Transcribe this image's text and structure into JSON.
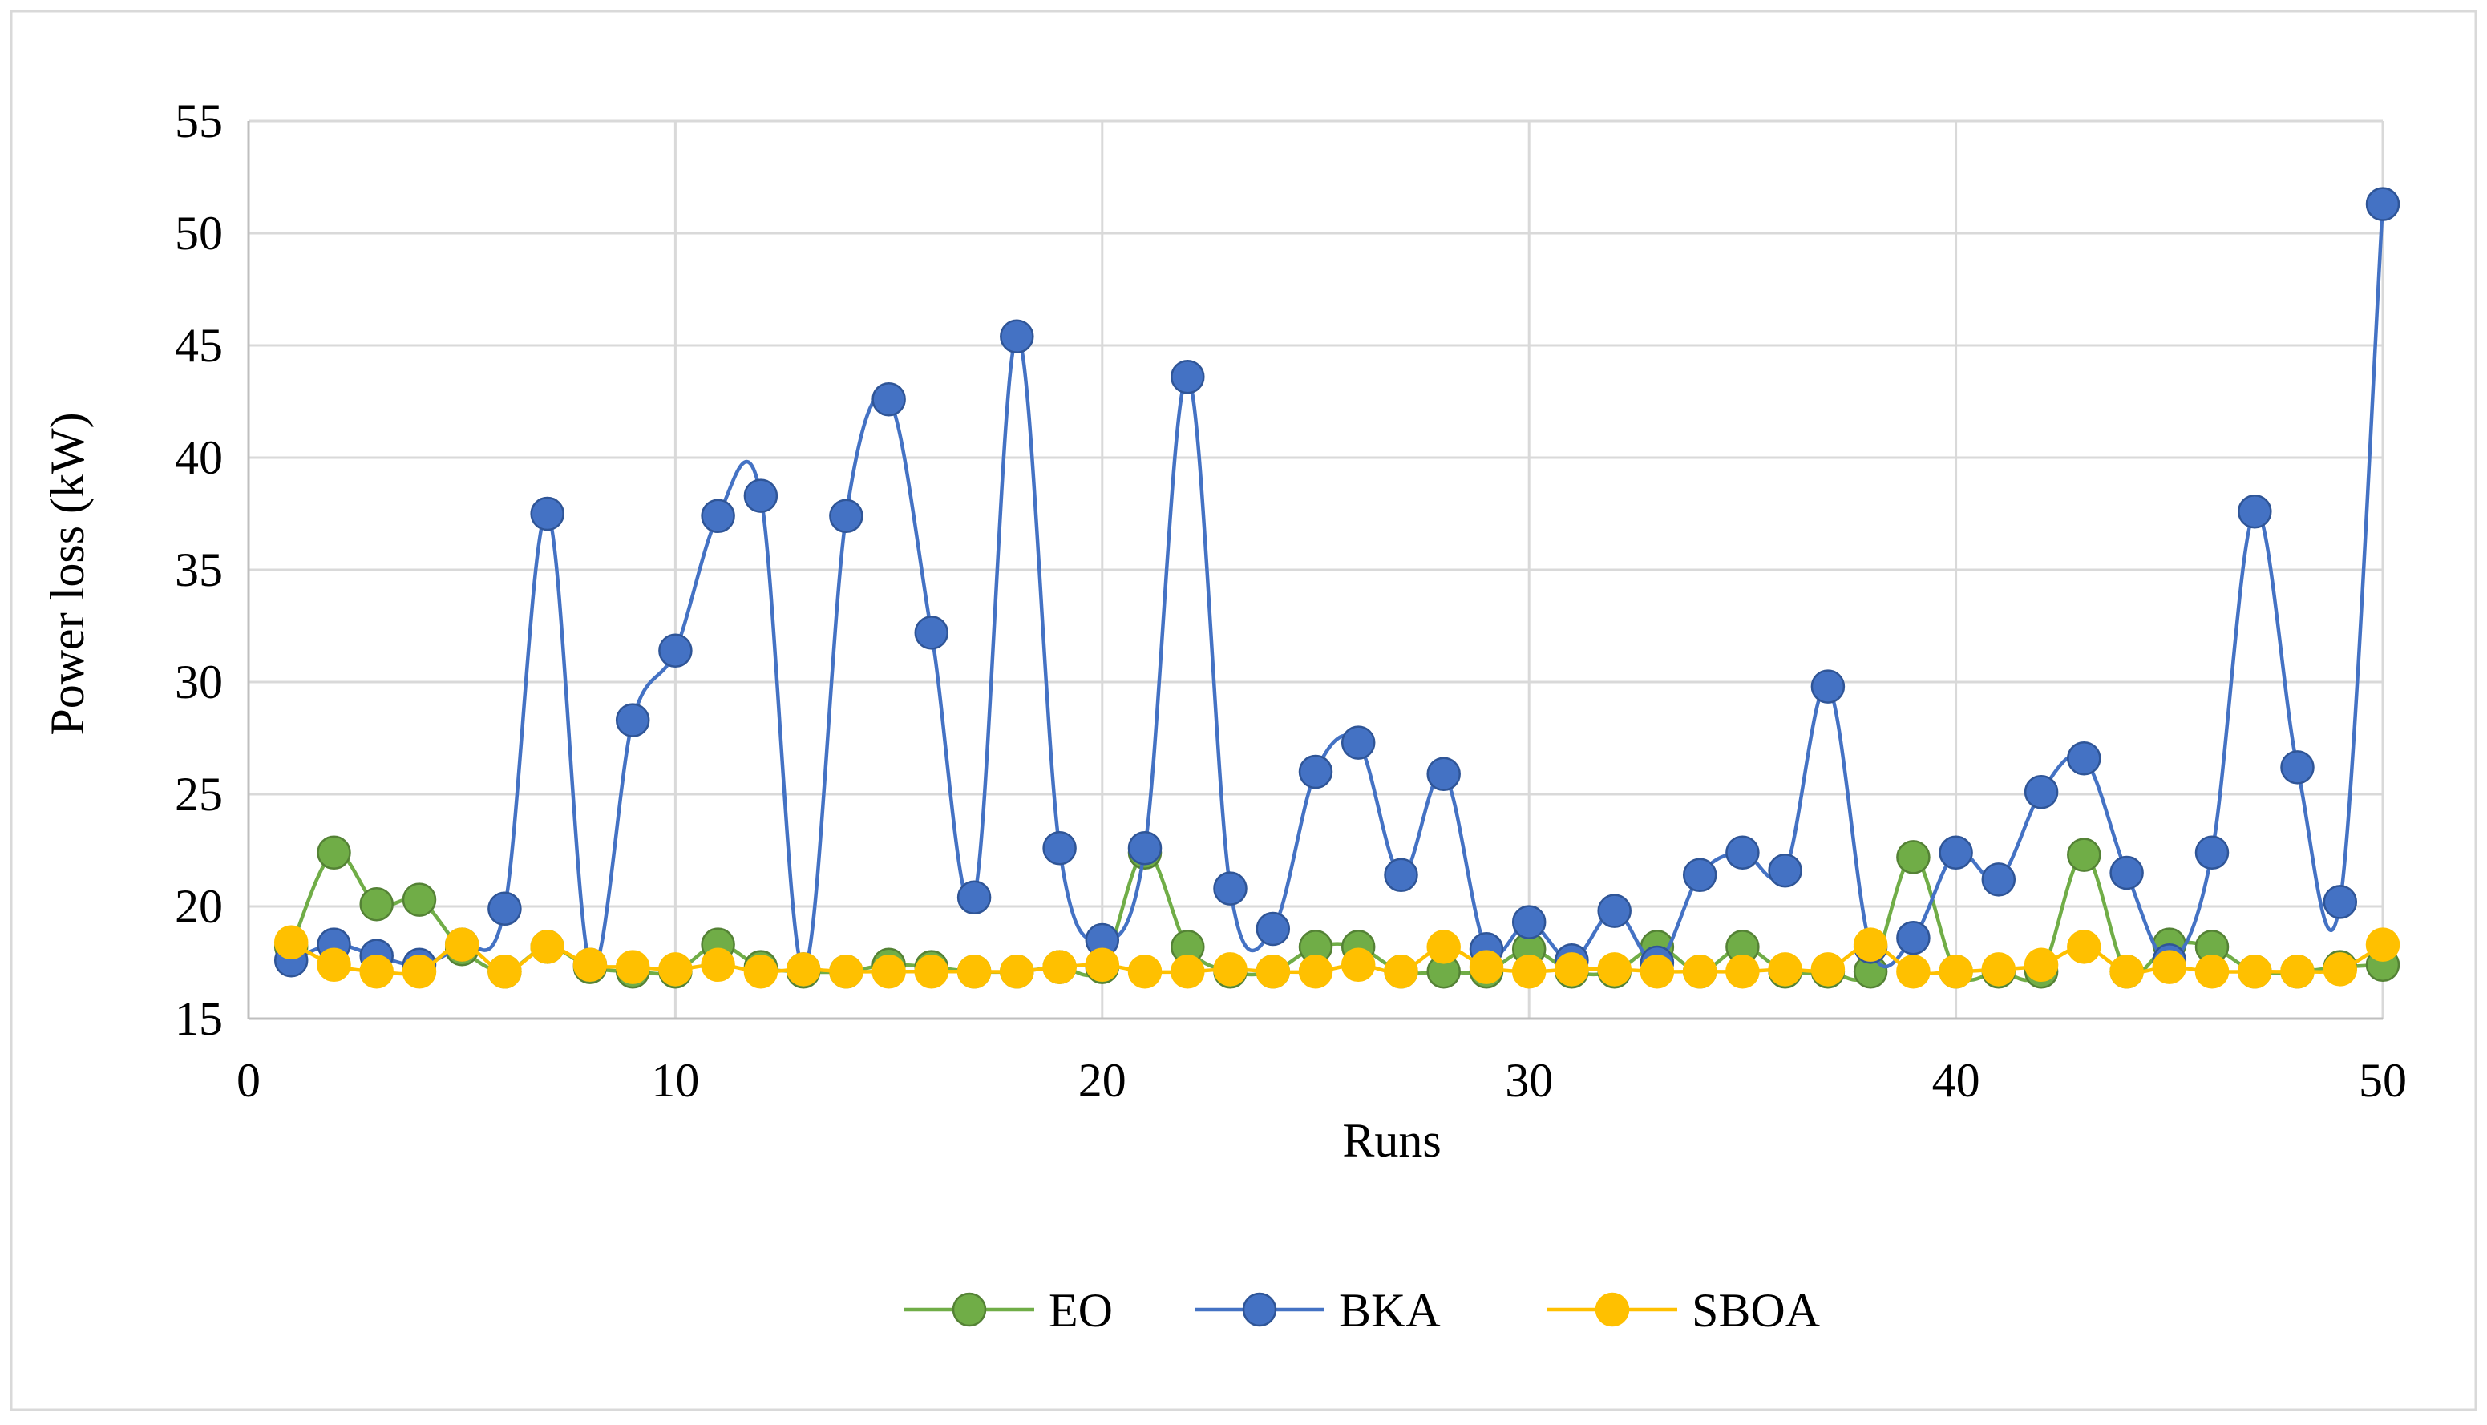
{
  "chart_data": {
    "type": "line",
    "title": "",
    "xlabel": "Runs",
    "ylabel": "Power loss (kW)",
    "xlim": [
      0,
      50
    ],
    "ylim": [
      15,
      55
    ],
    "xticks": [
      0,
      10,
      20,
      30,
      40,
      50
    ],
    "yticks": [
      15,
      20,
      25,
      30,
      35,
      40,
      45,
      50,
      55
    ],
    "grid": true,
    "legend_position": "bottom",
    "x": [
      1,
      2,
      3,
      4,
      5,
      6,
      7,
      8,
      9,
      10,
      11,
      12,
      13,
      14,
      15,
      16,
      17,
      18,
      19,
      20,
      21,
      22,
      23,
      24,
      25,
      26,
      27,
      28,
      29,
      30,
      31,
      32,
      33,
      34,
      35,
      36,
      37,
      38,
      39,
      40,
      41,
      42,
      43,
      44,
      45,
      46,
      47,
      48,
      49,
      50
    ],
    "series": [
      {
        "name": "EO",
        "color": "#70ad47",
        "stroke": "#548235",
        "values": [
          18.2,
          22.4,
          20.1,
          20.3,
          18.1,
          17.1,
          18.2,
          17.3,
          17.1,
          17.1,
          18.3,
          17.3,
          17.1,
          17.1,
          17.4,
          17.3,
          17.1,
          17.1,
          17.3,
          17.3,
          22.4,
          18.2,
          17.1,
          17.1,
          18.2,
          18.2,
          17.1,
          17.1,
          17.1,
          18.1,
          17.1,
          17.1,
          18.2,
          17.1,
          18.2,
          17.1,
          17.1,
          17.1,
          22.2,
          17.1,
          17.1,
          17.1,
          22.3,
          17.1,
          18.3,
          18.2,
          17.1,
          17.1,
          17.3,
          17.4
        ]
      },
      {
        "name": "BKA",
        "color": "#4472c4",
        "stroke": "#2f5597",
        "values": [
          17.6,
          18.3,
          17.8,
          17.4,
          18.3,
          19.9,
          37.5,
          17.4,
          28.3,
          31.4,
          37.4,
          38.3,
          17.2,
          37.4,
          42.6,
          32.2,
          20.4,
          45.4,
          22.6,
          18.5,
          22.6,
          43.6,
          20.8,
          19.0,
          26.0,
          27.3,
          21.4,
          25.9,
          18.1,
          19.3,
          17.6,
          19.8,
          17.5,
          21.4,
          22.4,
          21.6,
          29.8,
          18.2,
          18.6,
          22.4,
          21.2,
          25.1,
          26.6,
          21.5,
          17.6,
          22.4,
          37.6,
          26.2,
          20.2,
          51.3
        ]
      },
      {
        "name": "SBOA",
        "color": "#ffc000",
        "stroke": "#ffc000",
        "values": [
          18.4,
          17.4,
          17.1,
          17.1,
          18.3,
          17.1,
          18.2,
          17.4,
          17.3,
          17.2,
          17.4,
          17.1,
          17.2,
          17.1,
          17.1,
          17.1,
          17.1,
          17.1,
          17.3,
          17.4,
          17.1,
          17.1,
          17.2,
          17.1,
          17.1,
          17.4,
          17.1,
          18.2,
          17.3,
          17.1,
          17.2,
          17.2,
          17.1,
          17.1,
          17.1,
          17.2,
          17.2,
          18.3,
          17.1,
          17.1,
          17.2,
          17.4,
          18.2,
          17.1,
          17.3,
          17.1,
          17.1,
          17.1,
          17.2,
          18.3
        ]
      }
    ]
  }
}
